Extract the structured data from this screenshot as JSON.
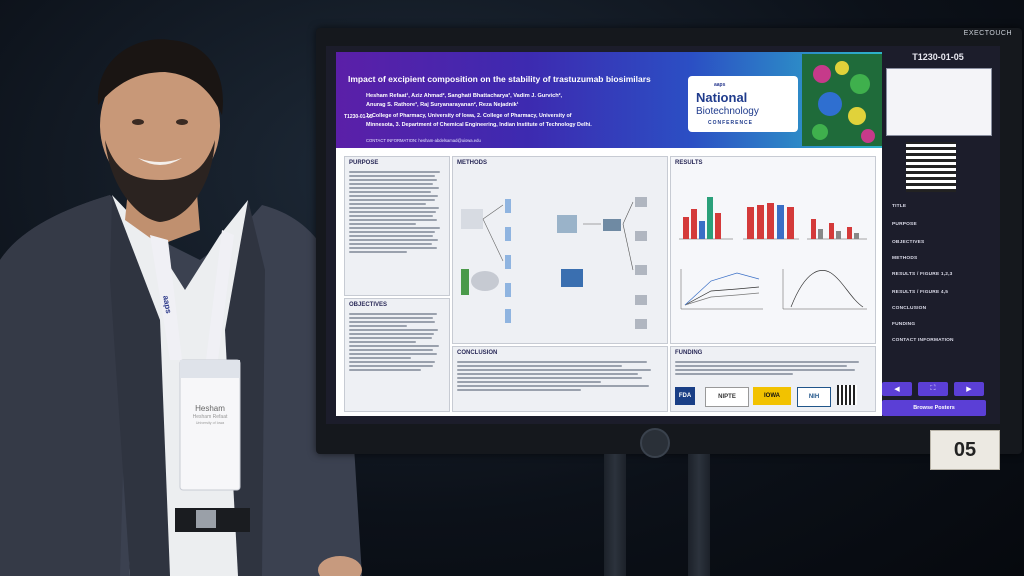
{
  "monitor": {
    "brand": "EXECTOUCH"
  },
  "placard": {
    "number": "05"
  },
  "badge": {
    "name": "Hesham",
    "subname": "Hesham Refaat",
    "affil": "University of Iowa",
    "lanyard": "aaps"
  },
  "poster": {
    "title": "Impact of excipient composition on the stability of trastuzumab biosimilars",
    "authors_line1": "Hesham Refaat¹, Aziz Ahmad², Sanghati Bhattacharya³, Vadim J. Gurvich²,",
    "authors_line2": "Anurag S. Rathore³, Raj Suryanarayanan², Reza Nejadnik¹",
    "affiliation_line1": "1. College of Pharmacy, University of Iowa, 2. College of Pharmacy, University of",
    "affiliation_line2": "Minnesota, 3. Department of Chemical Engineering, Indian Institute of Technology Delhi.",
    "code": "T1230-01-05",
    "contact": "CONTACT INFORMATION: hesham-abdelsamad@uiowa.edu",
    "conference": {
      "org": "aaps",
      "line1": "National",
      "line2": "Biotechnology",
      "line3": "CONFERENCE"
    },
    "sections": {
      "purpose": "PURPOSE",
      "objectives": "OBJECTIVES",
      "methods": "METHODS",
      "conclusion": "CONCLUSION",
      "results": "RESULTS",
      "funding": "FUNDING"
    },
    "funding_logos": [
      "FDA",
      "NIPTE",
      "IOWA",
      "NIH"
    ]
  },
  "nav": {
    "code": "T1230-01-05",
    "items": [
      "TITLE",
      "PURPOSE",
      "OBJECTIVES",
      "METHODS",
      "RESULTS / FIGURE 1,2,3",
      "RESULTS / FIGURE 4,5",
      "CONCLUSION",
      "FUNDING",
      "CONTACT INFORMATION"
    ],
    "prev_icon": "arrow-left-icon",
    "expand_icon": "expand-icon",
    "next_icon": "arrow-right-icon",
    "browse": "Browse Posters"
  },
  "colors": {
    "header_start": "#5b1fa8",
    "header_end": "#2eb5c9",
    "nav_button": "#5b3fd6"
  }
}
